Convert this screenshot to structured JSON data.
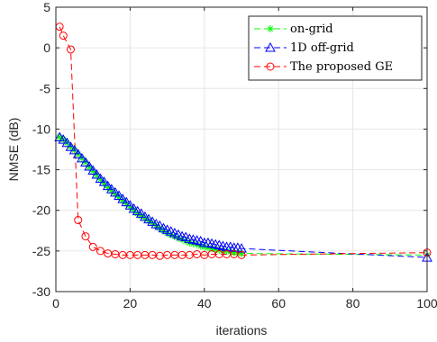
{
  "chart_data": {
    "type": "line",
    "title": "",
    "xlabel": "iterations",
    "ylabel": "NMSE (dB)",
    "xlim": [
      0,
      100
    ],
    "ylim": [
      -30,
      5
    ],
    "xticks": [
      0,
      20,
      40,
      60,
      80,
      100
    ],
    "yticks": [
      -30,
      -25,
      -20,
      -15,
      -10,
      -5,
      0,
      5
    ],
    "grid": true,
    "legend_position": "top-right",
    "series": [
      {
        "name": "on-grid",
        "color": "#00ff00",
        "marker": "asterisk",
        "x": [
          1,
          2,
          3,
          4,
          5,
          6,
          7,
          8,
          9,
          10,
          11,
          12,
          13,
          14,
          15,
          16,
          17,
          18,
          19,
          20,
          21,
          22,
          23,
          24,
          25,
          26,
          27,
          28,
          29,
          30,
          31,
          32,
          33,
          34,
          35,
          36,
          37,
          38,
          39,
          40,
          41,
          42,
          43,
          44,
          45,
          46,
          47,
          48,
          49,
          50,
          100
        ],
        "y": [
          -11.0,
          -11.3,
          -11.7,
          -12.2,
          -12.6,
          -13.1,
          -13.6,
          -14.1,
          -14.7,
          -15.2,
          -15.7,
          -16.2,
          -16.7,
          -17.2,
          -17.6,
          -18.0,
          -18.4,
          -18.8,
          -19.2,
          -19.6,
          -20.0,
          -20.4,
          -20.7,
          -21.0,
          -21.3,
          -21.6,
          -21.9,
          -22.2,
          -22.5,
          -22.8,
          -23.0,
          -23.2,
          -23.4,
          -23.6,
          -23.8,
          -24.0,
          -24.1,
          -24.2,
          -24.4,
          -24.5,
          -24.6,
          -24.7,
          -24.8,
          -24.9,
          -25.0,
          -25.0,
          -25.1,
          -25.2,
          -25.2,
          -25.3,
          -25.5
        ]
      },
      {
        "name": "1D off-grid",
        "color": "#0000ff",
        "marker": "triangle",
        "x": [
          1,
          2,
          3,
          4,
          5,
          6,
          7,
          8,
          9,
          10,
          11,
          12,
          13,
          14,
          15,
          16,
          17,
          18,
          19,
          20,
          21,
          22,
          23,
          24,
          25,
          26,
          27,
          28,
          29,
          30,
          31,
          32,
          33,
          34,
          35,
          36,
          37,
          38,
          39,
          40,
          41,
          42,
          43,
          44,
          45,
          46,
          47,
          48,
          49,
          50,
          100
        ],
        "y": [
          -11.0,
          -11.3,
          -11.7,
          -12.2,
          -12.6,
          -13.1,
          -13.6,
          -14.1,
          -14.6,
          -15.1,
          -15.6,
          -16.1,
          -16.5,
          -17.0,
          -17.4,
          -17.8,
          -18.2,
          -18.6,
          -19.0,
          -19.4,
          -19.8,
          -20.1,
          -20.4,
          -20.8,
          -21.1,
          -21.4,
          -21.7,
          -21.9,
          -22.2,
          -22.4,
          -22.6,
          -22.8,
          -23.0,
          -23.2,
          -23.3,
          -23.5,
          -23.6,
          -23.7,
          -23.8,
          -24.0,
          -24.0,
          -24.1,
          -24.2,
          -24.3,
          -24.4,
          -24.5,
          -24.5,
          -24.6,
          -24.6,
          -24.7,
          -25.8
        ]
      },
      {
        "name": "The proposed GE",
        "color": "#ff0000",
        "marker": "circle",
        "x": [
          1,
          2,
          4,
          6,
          8,
          10,
          12,
          14,
          16,
          18,
          20,
          22,
          24,
          26,
          28,
          30,
          32,
          34,
          36,
          38,
          40,
          42,
          44,
          46,
          48,
          50,
          100
        ],
        "y": [
          2.6,
          1.5,
          -0.2,
          -21.2,
          -23.2,
          -24.5,
          -25.0,
          -25.3,
          -25.4,
          -25.5,
          -25.5,
          -25.5,
          -25.5,
          -25.5,
          -25.6,
          -25.5,
          -25.5,
          -25.5,
          -25.5,
          -25.4,
          -25.5,
          -25.4,
          -25.4,
          -25.4,
          -25.4,
          -25.5,
          -25.2
        ]
      }
    ]
  }
}
